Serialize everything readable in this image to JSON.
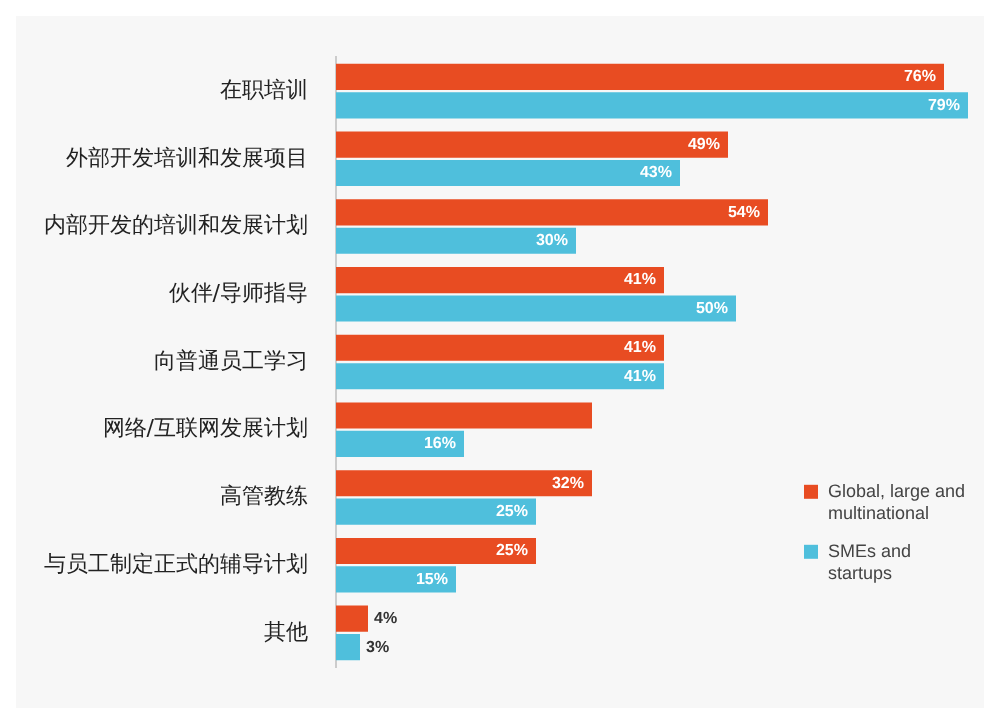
{
  "chart_data": {
    "type": "bar",
    "orientation": "horizontal",
    "categories": [
      "在职培训",
      "外部开发培训和发展项目",
      "内部开发的培训和发展计划",
      "伙伴/导师指导",
      "向普通员工学习",
      "网络/互联网发展计划",
      "高管教练",
      "与员工制定正式的辅导计划",
      "其他"
    ],
    "series": [
      {
        "name": "Global, large and multinational",
        "color": "#e84c22",
        "values": [
          76,
          49,
          54,
          41,
          41,
          32,
          32,
          25,
          4
        ],
        "value_labels": [
          "76%",
          "49%",
          "54%",
          "41%",
          "41%",
          null,
          "32%",
          "25%",
          "4%"
        ]
      },
      {
        "name": "SMEs and startups",
        "color": "#4fbfdc",
        "values": [
          79,
          43,
          30,
          50,
          41,
          16,
          25,
          15,
          3
        ],
        "value_labels": [
          "79%",
          "43%",
          "30%",
          "50%",
          "41%",
          "16%",
          "25%",
          "15%",
          "3%"
        ]
      }
    ],
    "grid": false,
    "legend": "bottom right",
    "tick_labels": "y"
  }
}
